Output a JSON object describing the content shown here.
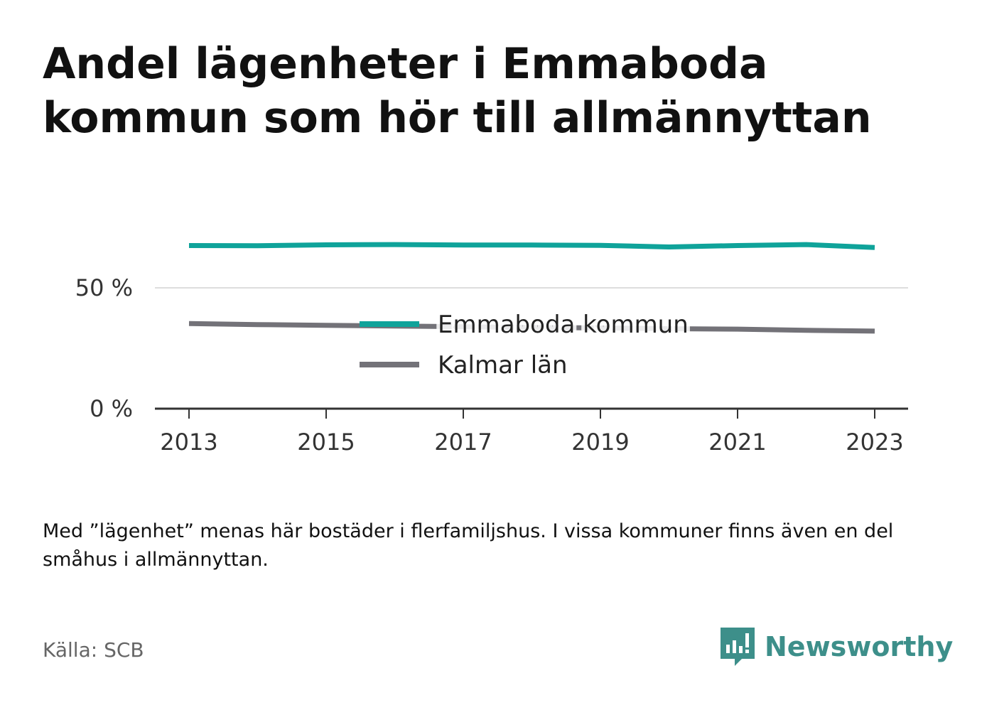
{
  "title": "Andel lägenheter i Emmaboda kommun som hör till allmännyttan",
  "note": "Med ”lägenhet” menas här bostäder i flerfamiljshus. I vissa kommuner finns även en del småhus i allmännyttan.",
  "source": "Källa: SCB",
  "brand": {
    "name": "Newsworthy",
    "color": "#3d8f8a",
    "icon": "newsworthy-logo-icon"
  },
  "chart_data": {
    "type": "line",
    "x": [
      2013,
      2014,
      2015,
      2016,
      2017,
      2018,
      2019,
      2020,
      2021,
      2022,
      2023
    ],
    "series": [
      {
        "name": "Emmaboda kommun",
        "color": "#0fa39a",
        "values": [
          67.5,
          67.4,
          67.8,
          67.9,
          67.7,
          67.7,
          67.6,
          66.9,
          67.5,
          67.9,
          66.7
        ]
      },
      {
        "name": "Kalmar län",
        "color": "#737278",
        "values": [
          35.2,
          34.8,
          34.5,
          34.2,
          33.9,
          33.6,
          33.4,
          33.1,
          32.9,
          32.4,
          32.1
        ]
      }
    ],
    "ylim": [
      0,
      75
    ],
    "yticks": [
      0,
      50
    ],
    "ytick_labels": [
      "0 %",
      "50 %"
    ],
    "xticks": [
      2013,
      2015,
      2017,
      2019,
      2021,
      2023
    ],
    "xtick_labels": [
      "2013",
      "2015",
      "2017",
      "2019",
      "2021",
      "2023"
    ],
    "grid": true,
    "legend": "center"
  }
}
